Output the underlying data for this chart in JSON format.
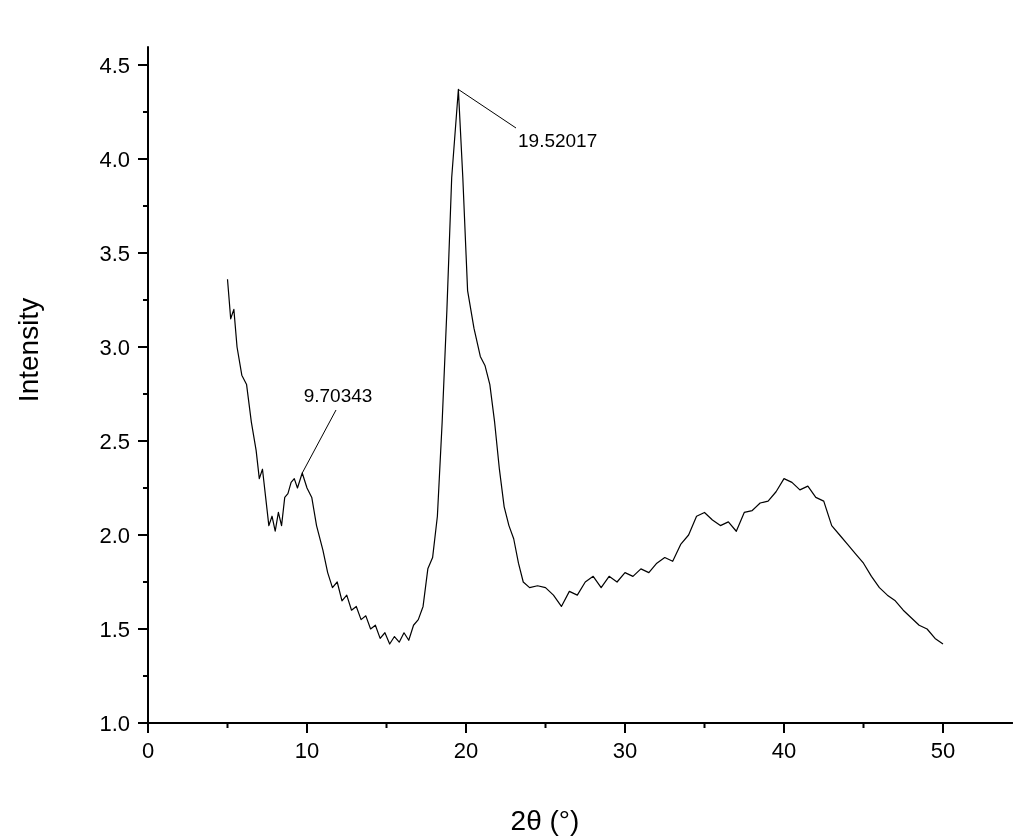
{
  "chart_data": {
    "type": "line",
    "xlabel": "2θ (°)",
    "ylabel": "Intensity",
    "xlim": [
      0,
      54.4
    ],
    "ylim": [
      1,
      4.6
    ],
    "xticks": [
      0,
      {
        "value": 5,
        "label": null
      },
      10,
      {
        "value": 15,
        "label": null
      },
      20,
      {
        "value": 25,
        "label": null
      },
      30,
      {
        "value": 35,
        "label": null
      },
      40,
      {
        "value": 45,
        "label": null
      },
      50
    ],
    "yticks": [
      "1.0",
      {
        "value": 1.25,
        "label": null
      },
      {
        "value": 1.5,
        "label": "1.5"
      },
      {
        "value": 1.75,
        "label": null
      },
      {
        "value": 2,
        "label": "2.0"
      },
      {
        "value": 2.25,
        "label": null
      },
      {
        "value": 2.5,
        "label": "2.5"
      },
      {
        "value": 2.75,
        "label": null
      },
      {
        "value": 3,
        "label": "3.0"
      },
      {
        "value": 3.25,
        "label": null
      },
      {
        "value": 3.5,
        "label": "3.5"
      },
      {
        "value": 3.75,
        "label": null
      },
      {
        "value": 4,
        "label": "4.0"
      },
      {
        "value": 4.25,
        "label": null
      },
      {
        "value": 4.5,
        "label": "4.5"
      }
    ],
    "grid": false,
    "marker": "none",
    "line_style": "solid",
    "annotations": [
      {
        "text": "9.70343",
        "x": 9.70343,
        "y": 2.33
      },
      {
        "text": "19.52017",
        "x": 19.52017,
        "y": 4.37
      }
    ],
    "series": [
      {
        "color": "#000000",
        "x": [
          5.0,
          5.2,
          5.4,
          5.6,
          5.9,
          6.2,
          6.5,
          6.8,
          7.0,
          7.2,
          7.4,
          7.6,
          7.8,
          8.0,
          8.2,
          8.4,
          8.6,
          8.8,
          9.0,
          9.2,
          9.4,
          9.7,
          10.0,
          10.3,
          10.6,
          11.0,
          11.3,
          11.6,
          11.9,
          12.2,
          12.5,
          12.8,
          13.1,
          13.4,
          13.7,
          14.0,
          14.3,
          14.6,
          14.9,
          15.2,
          15.5,
          15.8,
          16.1,
          16.4,
          16.7,
          17.0,
          17.3,
          17.6,
          17.9,
          18.2,
          18.5,
          18.8,
          19.1,
          19.52,
          19.8,
          20.1,
          20.5,
          20.9,
          21.2,
          21.5,
          21.8,
          22.1,
          22.4,
          22.7,
          23.0,
          23.3,
          23.6,
          24.0,
          24.5,
          25.0,
          25.5,
          26.0,
          26.5,
          27.0,
          27.5,
          28.0,
          28.5,
          29.0,
          29.5,
          30.0,
          30.5,
          31.0,
          31.5,
          32.0,
          32.5,
          33.0,
          33.5,
          34.0,
          34.5,
          35.0,
          35.5,
          36.0,
          36.5,
          37.0,
          37.5,
          38.0,
          38.5,
          39.0,
          39.5,
          40.0,
          40.5,
          41.0,
          41.5,
          42.0,
          42.5,
          43.0,
          43.5,
          44.0,
          44.5,
          45.0,
          45.5,
          46.0,
          46.5,
          47.0,
          47.5,
          48.0,
          48.5,
          49.0,
          49.5,
          50.0
        ],
        "values": [
          3.36,
          3.15,
          3.2,
          3.0,
          2.85,
          2.8,
          2.6,
          2.45,
          2.3,
          2.35,
          2.2,
          2.05,
          2.1,
          2.02,
          2.12,
          2.05,
          2.2,
          2.22,
          2.28,
          2.3,
          2.25,
          2.33,
          2.25,
          2.2,
          2.05,
          1.92,
          1.8,
          1.72,
          1.75,
          1.65,
          1.68,
          1.6,
          1.62,
          1.55,
          1.57,
          1.5,
          1.52,
          1.45,
          1.48,
          1.42,
          1.46,
          1.43,
          1.48,
          1.44,
          1.52,
          1.55,
          1.62,
          1.82,
          1.88,
          2.1,
          2.6,
          3.2,
          3.9,
          4.37,
          3.9,
          3.3,
          3.1,
          2.95,
          2.9,
          2.8,
          2.6,
          2.35,
          2.15,
          2.05,
          1.98,
          1.85,
          1.75,
          1.72,
          1.73,
          1.72,
          1.68,
          1.62,
          1.7,
          1.68,
          1.75,
          1.78,
          1.72,
          1.78,
          1.75,
          1.8,
          1.78,
          1.82,
          1.8,
          1.85,
          1.88,
          1.86,
          1.95,
          2.0,
          2.1,
          2.12,
          2.08,
          2.05,
          2.07,
          2.02,
          2.12,
          2.13,
          2.17,
          2.18,
          2.23,
          2.3,
          2.28,
          2.24,
          2.26,
          2.2,
          2.18,
          2.05,
          2.0,
          1.95,
          1.9,
          1.85,
          1.78,
          1.72,
          1.68,
          1.65,
          1.6,
          1.56,
          1.52,
          1.5,
          1.45,
          1.42
        ]
      }
    ]
  }
}
